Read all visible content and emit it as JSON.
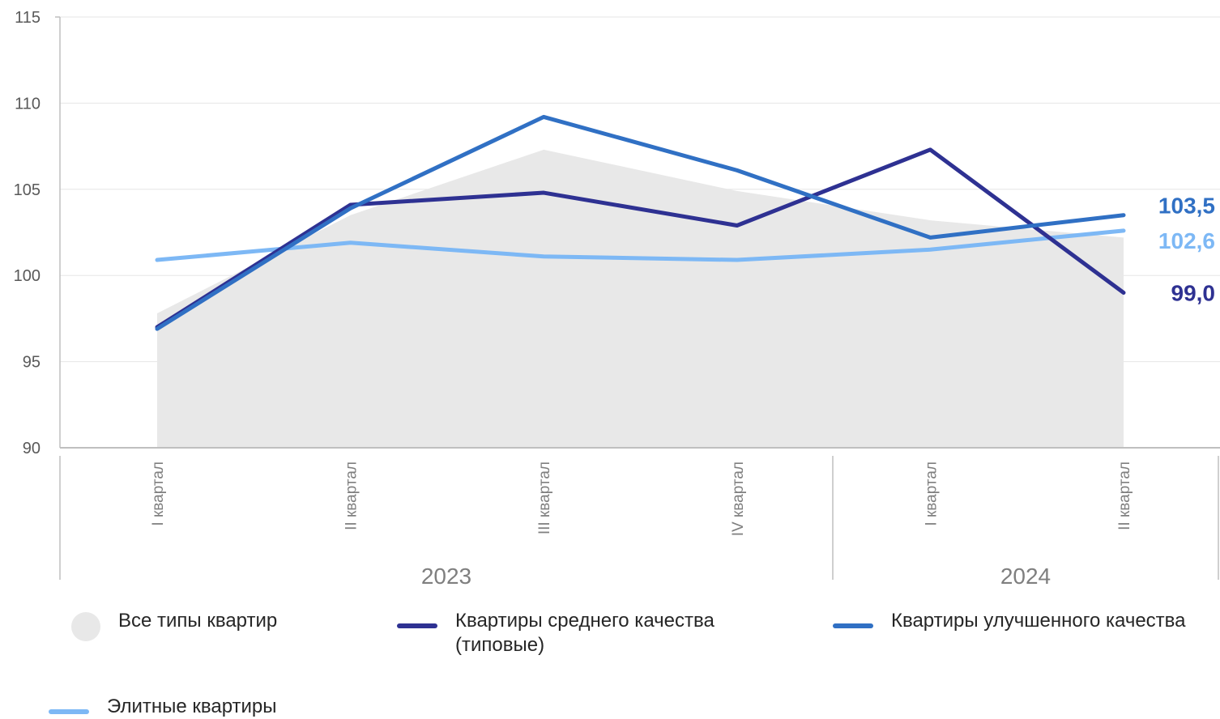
{
  "chart_data": {
    "type": "line",
    "title": "",
    "xlabel": "",
    "ylabel": "",
    "ylim": [
      90,
      115
    ],
    "yticks": [
      "90",
      "95",
      "100",
      "105",
      "110",
      "115"
    ],
    "grid": true,
    "legend_position": "bottom",
    "categories": [
      "I квартал",
      "II квартал",
      "III квартал",
      "IV квартал",
      "I квартал",
      "II квартал"
    ],
    "groups": [
      {
        "label": "2023",
        "count": 4
      },
      {
        "label": "2024",
        "count": 2
      }
    ],
    "series": [
      {
        "name": "Все типы квартир",
        "kind": "area",
        "color": "#e8e8e8",
        "values": [
          97.8,
          103.5,
          107.3,
          104.9,
          103.2,
          102.2
        ]
      },
      {
        "name": "Квартиры среднего качества\n(типовые)",
        "kind": "line",
        "color": "#2e3192",
        "values": [
          97.0,
          104.1,
          104.8,
          102.9,
          107.3,
          99.0
        ],
        "end_label": "99,0"
      },
      {
        "name": "Квартиры улучшенного качества",
        "kind": "line",
        "color": "#3070c4",
        "values": [
          96.9,
          103.9,
          109.2,
          106.1,
          102.2,
          103.5
        ],
        "end_label": "103,5"
      },
      {
        "name": "Элитные квартиры",
        "kind": "line",
        "color": "#7db8f5",
        "values": [
          100.9,
          101.9,
          101.1,
          100.9,
          101.5,
          102.6
        ],
        "end_label": "102,6"
      }
    ]
  }
}
